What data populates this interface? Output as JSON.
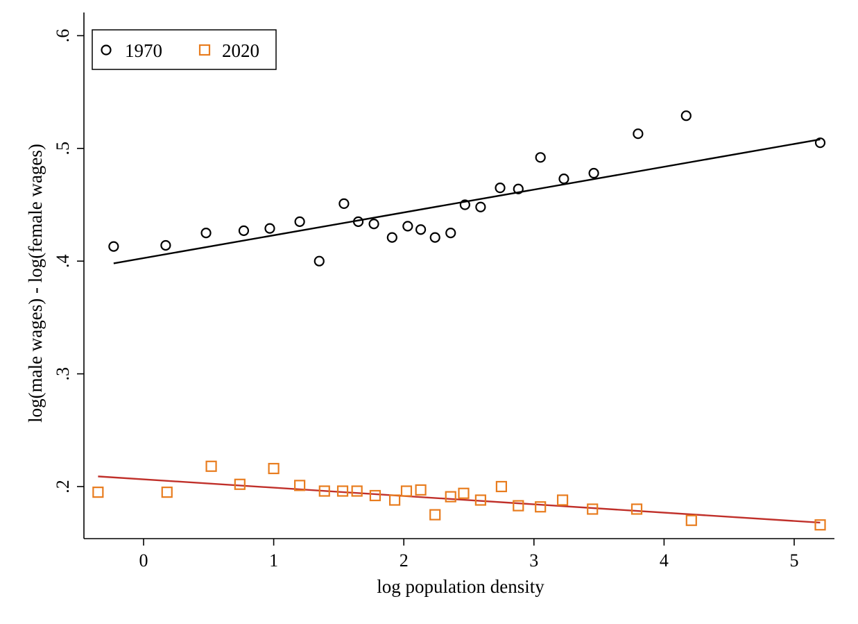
{
  "chart_data": {
    "type": "scatter",
    "title": "",
    "xlabel": "log population density",
    "ylabel": "log(male wages) - log(female wages)",
    "xlim": [
      -0.45,
      5.3
    ],
    "ylim": [
      0.148,
      0.605
    ],
    "xticks": [
      0,
      1,
      2,
      3,
      4,
      5
    ],
    "xtick_labels": [
      "0",
      "1",
      "2",
      "3",
      "4",
      "5"
    ],
    "yticks": [
      0.2,
      0.3,
      0.4,
      0.5,
      0.6
    ],
    "ytick_labels": [
      ".2",
      ".3",
      ".4",
      ".5",
      ".6"
    ],
    "grid": false,
    "legend_position": "top-left",
    "series": [
      {
        "name": "1970",
        "marker": "circle",
        "color": "#000000",
        "points": [
          [
            -0.23,
            0.413
          ],
          [
            0.17,
            0.414
          ],
          [
            0.48,
            0.425
          ],
          [
            0.77,
            0.427
          ],
          [
            0.97,
            0.429
          ],
          [
            1.2,
            0.435
          ],
          [
            1.35,
            0.4
          ],
          [
            1.54,
            0.451
          ],
          [
            1.65,
            0.435
          ],
          [
            1.77,
            0.433
          ],
          [
            1.91,
            0.421
          ],
          [
            2.03,
            0.431
          ],
          [
            2.13,
            0.428
          ],
          [
            2.24,
            0.421
          ],
          [
            2.36,
            0.425
          ],
          [
            2.47,
            0.45
          ],
          [
            2.59,
            0.448
          ],
          [
            2.74,
            0.465
          ],
          [
            2.88,
            0.464
          ],
          [
            3.05,
            0.492
          ],
          [
            3.23,
            0.473
          ],
          [
            3.46,
            0.478
          ],
          [
            3.8,
            0.513
          ],
          [
            4.17,
            0.529
          ],
          [
            5.2,
            0.505
          ]
        ],
        "fit": {
          "color": "#000000",
          "x": [
            -0.23,
            5.2
          ],
          "y": [
            0.398,
            0.508
          ]
        }
      },
      {
        "name": "2020",
        "marker": "square",
        "color": "#e87c1e",
        "points": [
          [
            -0.35,
            0.195
          ],
          [
            0.18,
            0.195
          ],
          [
            0.52,
            0.218
          ],
          [
            0.74,
            0.202
          ],
          [
            1.0,
            0.216
          ],
          [
            1.2,
            0.201
          ],
          [
            1.39,
            0.196
          ],
          [
            1.53,
            0.196
          ],
          [
            1.64,
            0.196
          ],
          [
            1.78,
            0.192
          ],
          [
            1.93,
            0.188
          ],
          [
            2.02,
            0.196
          ],
          [
            2.13,
            0.197
          ],
          [
            2.24,
            0.175
          ],
          [
            2.36,
            0.191
          ],
          [
            2.46,
            0.194
          ],
          [
            2.59,
            0.188
          ],
          [
            2.75,
            0.2
          ],
          [
            2.88,
            0.183
          ],
          [
            3.05,
            0.182
          ],
          [
            3.22,
            0.188
          ],
          [
            3.45,
            0.18
          ],
          [
            3.79,
            0.18
          ],
          [
            4.21,
            0.17
          ],
          [
            5.2,
            0.166
          ]
        ],
        "fit": {
          "color": "#c0302a",
          "x": [
            -0.35,
            5.2
          ],
          "y": [
            0.209,
            0.168
          ]
        }
      }
    ]
  }
}
